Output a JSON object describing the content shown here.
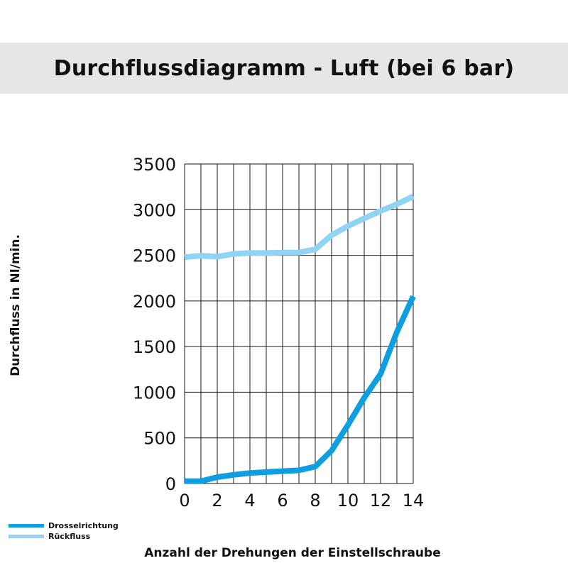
{
  "title": "Durchflussdiagramm - Luft (bei 6 bar)",
  "chart_data": {
    "type": "line",
    "title": "Durchflussdiagramm - Luft (bei 6 bar)",
    "xlabel": "Anzahl der Drehungen der Einstellschraube",
    "ylabel": "Durchfluss in Nl/min.",
    "xlim": [
      0,
      14
    ],
    "ylim": [
      0,
      3500
    ],
    "x_ticks": [
      0,
      2,
      4,
      6,
      8,
      10,
      12,
      14
    ],
    "y_ticks": [
      0,
      500,
      1000,
      1500,
      2000,
      2500,
      3000,
      3500
    ],
    "grid": true,
    "legend_position": "bottom-left",
    "series": [
      {
        "name": "Drosselrichtung",
        "color": "#0f9ee0",
        "points": [
          [
            0,
            25
          ],
          [
            1,
            25
          ],
          [
            2,
            70
          ],
          [
            3,
            95
          ],
          [
            4,
            115
          ],
          [
            5,
            125
          ],
          [
            6,
            135
          ],
          [
            7,
            145
          ],
          [
            8,
            185
          ],
          [
            9,
            360
          ],
          [
            10,
            640
          ],
          [
            11,
            940
          ],
          [
            12,
            1200
          ],
          [
            13,
            1660
          ],
          [
            14,
            2050
          ]
        ]
      },
      {
        "name": "Rückfluss",
        "color": "#8fd3f5",
        "points": [
          [
            0,
            2480
          ],
          [
            1,
            2495
          ],
          [
            2,
            2485
          ],
          [
            3,
            2515
          ],
          [
            4,
            2525
          ],
          [
            5,
            2525
          ],
          [
            6,
            2530
          ],
          [
            7,
            2530
          ],
          [
            8,
            2565
          ],
          [
            9,
            2720
          ],
          [
            10,
            2820
          ],
          [
            11,
            2905
          ],
          [
            12,
            2985
          ],
          [
            13,
            3060
          ],
          [
            14,
            3145
          ]
        ]
      }
    ]
  }
}
